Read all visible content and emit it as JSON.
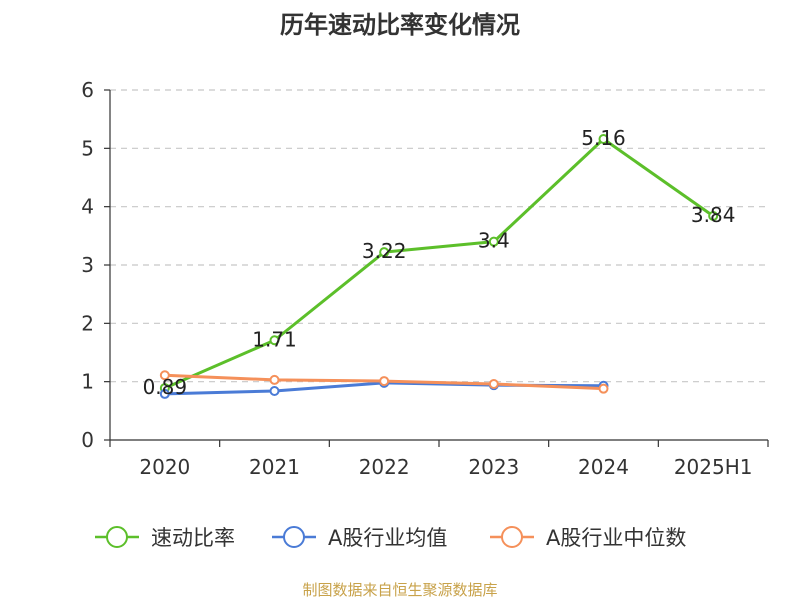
{
  "chart_data": {
    "type": "line",
    "title": "历年速动比率变化情况",
    "categories": [
      "2020",
      "2021",
      "2022",
      "2023",
      "2024",
      "2025H1"
    ],
    "ylim": [
      0,
      6
    ],
    "yticks": [
      "0",
      "1",
      "2",
      "3",
      "4",
      "5",
      "6"
    ],
    "grid": true,
    "legend_position": "bottom",
    "series": [
      {
        "name": "速动比率",
        "color": "#5cbf2a",
        "values": [
          0.89,
          1.71,
          3.22,
          3.4,
          5.16,
          3.84
        ],
        "labels": [
          "0.89",
          "1.71",
          "3.22",
          "3.4",
          "5.16",
          "3.84"
        ]
      },
      {
        "name": "A股行业均值",
        "color": "#4a7bd6",
        "values": [
          0.79,
          0.84,
          0.98,
          0.94,
          0.93,
          null
        ]
      },
      {
        "name": "A股行业中位数",
        "color": "#f5905a",
        "values": [
          1.11,
          1.03,
          1.01,
          0.96,
          0.88,
          null
        ]
      }
    ]
  },
  "footer": {
    "source": "制图数据来自恒生聚源数据库"
  }
}
